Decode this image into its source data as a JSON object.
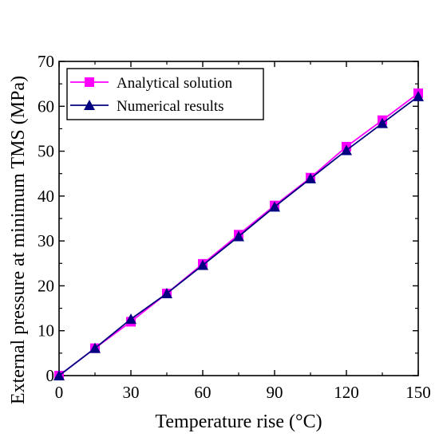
{
  "chart_data": {
    "type": "line",
    "xlabel": "Temperature rise (°C)",
    "ylabel": "External pressure at minimum TMS (MPa)",
    "xlim": [
      0,
      150
    ],
    "ylim": [
      0,
      70
    ],
    "x_ticks": [
      "0",
      "30",
      "60",
      "90",
      "120",
      "150"
    ],
    "y_ticks": [
      "0",
      "10",
      "20",
      "30",
      "40",
      "50",
      "60",
      "70"
    ],
    "grid": false,
    "legend_position": "top-left",
    "series": [
      {
        "name": "Analytical solution",
        "marker": "square",
        "color": "#ff00ff",
        "x": [
          0,
          15,
          30,
          45,
          60,
          75,
          90,
          105,
          120,
          135,
          150
        ],
        "y": [
          0,
          6.1,
          12.0,
          18.3,
          24.9,
          31.4,
          37.9,
          44.1,
          51.0,
          56.9,
          62.9
        ]
      },
      {
        "name": "Numerical results",
        "marker": "triangle",
        "color": "#000080",
        "x": [
          0,
          15,
          30,
          45,
          60,
          75,
          90,
          105,
          120,
          135,
          150
        ],
        "y": [
          0,
          6.1,
          12.6,
          18.3,
          24.6,
          31.0,
          37.6,
          43.9,
          50.2,
          56.2,
          62.2
        ]
      }
    ]
  }
}
